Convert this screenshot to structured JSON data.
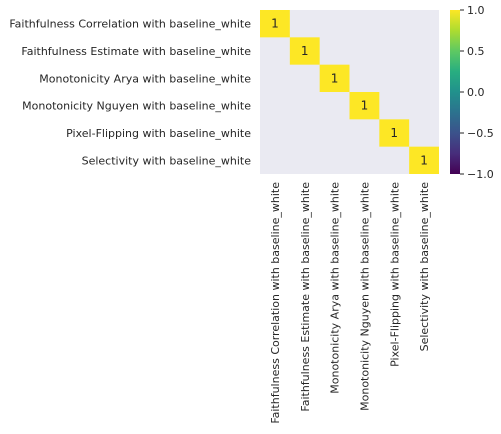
{
  "chart_data": {
    "type": "heatmap",
    "title": "",
    "rows": [
      "Faithfulness Correlation with baseline_white",
      "Faithfulness Estimate with baseline_white",
      "Monotonicity Arya with baseline_white",
      "Monotonicity Nguyen with baseline_white",
      "Pixel-Flipping with baseline_white",
      "Selectivity with baseline_white"
    ],
    "columns": [
      "Faithfulness Correlation with baseline_white",
      "Faithfulness Estimate with baseline_white",
      "Monotonicity Arya with baseline_white",
      "Monotonicity Nguyen with baseline_white",
      "Pixel-Flipping with baseline_white",
      "Selectivity with baseline_white"
    ],
    "values": [
      [
        1,
        null,
        null,
        null,
        null,
        null
      ],
      [
        null,
        1,
        null,
        null,
        null,
        null
      ],
      [
        null,
        null,
        1,
        null,
        null,
        null
      ],
      [
        null,
        null,
        null,
        1,
        null,
        null
      ],
      [
        null,
        null,
        null,
        null,
        1,
        null
      ],
      [
        null,
        null,
        null,
        null,
        null,
        1
      ]
    ],
    "cell_labels": [
      [
        "1",
        "",
        "",
        "",
        "",
        ""
      ],
      [
        "",
        "1",
        "",
        "",
        "",
        ""
      ],
      [
        "",
        "",
        "1",
        "",
        "",
        ""
      ],
      [
        "",
        "",
        "",
        "1",
        "",
        ""
      ],
      [
        "",
        "",
        "",
        "",
        "1",
        ""
      ],
      [
        "",
        "",
        "",
        "",
        "",
        "1"
      ]
    ],
    "colormap": "viridis",
    "vmin": -1.0,
    "vmax": 1.0,
    "colorbar_ticks": [
      "1.0",
      "0.5",
      "0.0",
      "−0.5",
      "−1.0"
    ],
    "colorbar_tick_values": [
      1.0,
      0.5,
      0.0,
      -0.5,
      -1.0
    ],
    "missing_cell_color": "#eaeaf2"
  }
}
